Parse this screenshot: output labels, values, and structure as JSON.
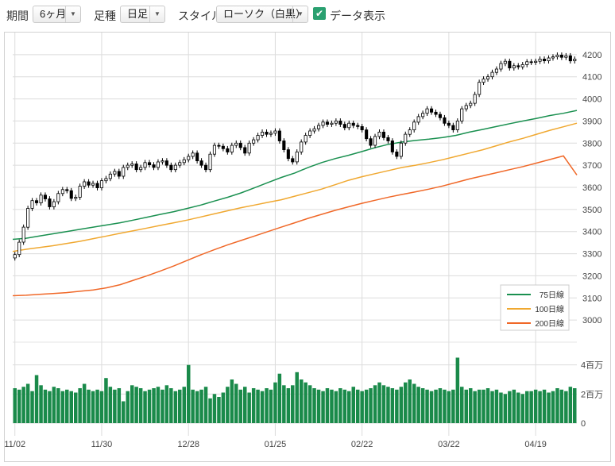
{
  "toolbar": {
    "period_label": "期間",
    "period_value": "6ヶ月",
    "ashi_label": "足種",
    "ashi_value": "日足",
    "style_label": "スタイル",
    "style_value": "ローソク（白黒）",
    "show_data_label": "データ表示",
    "show_data_checked": true
  },
  "colors": {
    "candle": "#000000",
    "ma75": "#1a9050",
    "ma100": "#f0a830",
    "ma200": "#f06828",
    "volume": "#1a8a4a",
    "grid": "#dcdcdc"
  },
  "chart_data": {
    "type": "candlestick",
    "price_axis": {
      "range": [
        2900,
        4300
      ],
      "ticks": [
        "3000",
        "3100",
        "3200",
        "3300",
        "3400",
        "3500",
        "3600",
        "3700",
        "3800",
        "3900",
        "4000",
        "4100",
        "4200"
      ]
    },
    "volume_axis": {
      "unit": "百万",
      "ticks": [
        "0",
        "2百万",
        "4百万"
      ],
      "range_millions": [
        0,
        6
      ]
    },
    "x_ticks": [
      "11/02",
      "11/30",
      "12/28",
      "01/25",
      "02/22",
      "03/22",
      "04/19"
    ],
    "x_tick_index": [
      0,
      20,
      40,
      60,
      80,
      100,
      120
    ],
    "candle_count": 130,
    "legend": [
      {
        "key": "ma75",
        "label": "75日線"
      },
      {
        "key": "ma100",
        "label": "100日線"
      },
      {
        "key": "ma200",
        "label": "200日線"
      }
    ],
    "close": [
      3296,
      3352,
      3420,
      3505,
      3540,
      3530,
      3565,
      3548,
      3512,
      3535,
      3572,
      3590,
      3585,
      3550,
      3555,
      3605,
      3625,
      3610,
      3618,
      3598,
      3630,
      3640,
      3660,
      3672,
      3650,
      3690,
      3700,
      3706,
      3680,
      3690,
      3712,
      3702,
      3690,
      3715,
      3720,
      3700,
      3680,
      3700,
      3712,
      3725,
      3740,
      3755,
      3720,
      3700,
      3680,
      3750,
      3790,
      3786,
      3775,
      3760,
      3790,
      3800,
      3780,
      3755,
      3800,
      3815,
      3835,
      3850,
      3840,
      3845,
      3855,
      3810,
      3770,
      3730,
      3715,
      3760,
      3805,
      3835,
      3855,
      3865,
      3880,
      3895,
      3885,
      3890,
      3900,
      3885,
      3870,
      3890,
      3880,
      3875,
      3860,
      3820,
      3790,
      3830,
      3850,
      3825,
      3810,
      3760,
      3740,
      3800,
      3840,
      3860,
      3895,
      3920,
      3935,
      3955,
      3940,
      3930,
      3915,
      3890,
      3880,
      3860,
      3900,
      3955,
      3970,
      3980,
      4020,
      4075,
      4090,
      4100,
      4120,
      4135,
      4160,
      4170,
      4140,
      4150,
      4145,
      4155,
      4168,
      4165,
      4170,
      4180,
      4172,
      4185,
      4190,
      4198,
      4188,
      4195,
      4172,
      4180
    ],
    "volume_millions": [
      2.4,
      2.3,
      2.5,
      2.7,
      2.2,
      3.3,
      2.6,
      2.3,
      2.2,
      2.5,
      2.4,
      2.2,
      2.3,
      2.2,
      2.1,
      2.4,
      2.7,
      2.3,
      2.2,
      2.3,
      2.2,
      3.1,
      2.5,
      2.3,
      2.4,
      1.5,
      2.2,
      2.6,
      2.5,
      2.4,
      2.2,
      2.3,
      2.4,
      2.5,
      2.3,
      2.6,
      2.4,
      2.2,
      2.3,
      2.5,
      4.0,
      2.3,
      2.2,
      2.3,
      2.5,
      1.7,
      2.0,
      1.8,
      2.1,
      2.5,
      3.0,
      2.7,
      2.3,
      2.5,
      2.1,
      2.4,
      2.3,
      2.2,
      2.4,
      2.3,
      2.8,
      3.4,
      2.6,
      2.4,
      2.6,
      3.5,
      3.0,
      2.8,
      2.6,
      2.4,
      2.3,
      2.2,
      2.4,
      2.3,
      2.2,
      2.4,
      2.3,
      2.2,
      2.5,
      2.3,
      2.2,
      2.3,
      2.4,
      2.6,
      2.8,
      2.6,
      2.5,
      2.4,
      2.3,
      2.5,
      2.8,
      3.0,
      2.7,
      2.5,
      2.4,
      2.3,
      2.2,
      2.3,
      2.4,
      2.3,
      2.2,
      2.3,
      4.5,
      2.5,
      2.3,
      2.4,
      2.2,
      2.3,
      2.3,
      2.4,
      2.2,
      2.3,
      2.1,
      2.0,
      2.2,
      2.3,
      2.1,
      2.0,
      2.2,
      2.2,
      2.3,
      2.2,
      2.3,
      2.1,
      2.2,
      2.4,
      2.3,
      2.2,
      2.5,
      2.4
    ],
    "ma75": [
      3365,
      3370,
      3380,
      3390,
      3400,
      3410,
      3420,
      3430,
      3440,
      3452,
      3465,
      3478,
      3490,
      3505,
      3520,
      3538,
      3555,
      3575,
      3598,
      3622,
      3645,
      3665,
      3690,
      3712,
      3730,
      3745,
      3762,
      3780,
      3795,
      3805,
      3812,
      3818,
      3825,
      3835,
      3850,
      3862,
      3875,
      3888,
      3900,
      3912,
      3925,
      3935,
      3948
    ],
    "ma100": [
      3310,
      3320,
      3328,
      3336,
      3346,
      3356,
      3368,
      3380,
      3392,
      3404,
      3416,
      3428,
      3440,
      3452,
      3466,
      3480,
      3494,
      3508,
      3520,
      3532,
      3544,
      3560,
      3576,
      3592,
      3612,
      3632,
      3648,
      3662,
      3676,
      3690,
      3700,
      3712,
      3725,
      3740,
      3755,
      3770,
      3788,
      3806,
      3822,
      3840,
      3858,
      3874,
      3890
    ],
    "ma200": [
      3110,
      3112,
      3116,
      3120,
      3124,
      3130,
      3136,
      3146,
      3160,
      3180,
      3200,
      3222,
      3245,
      3270,
      3295,
      3318,
      3340,
      3360,
      3380,
      3400,
      3420,
      3440,
      3460,
      3478,
      3496,
      3512,
      3528,
      3542,
      3556,
      3568,
      3580,
      3592,
      3606,
      3622,
      3638,
      3652,
      3666,
      3680,
      3694,
      3710,
      3726,
      3742,
      3656
    ]
  }
}
